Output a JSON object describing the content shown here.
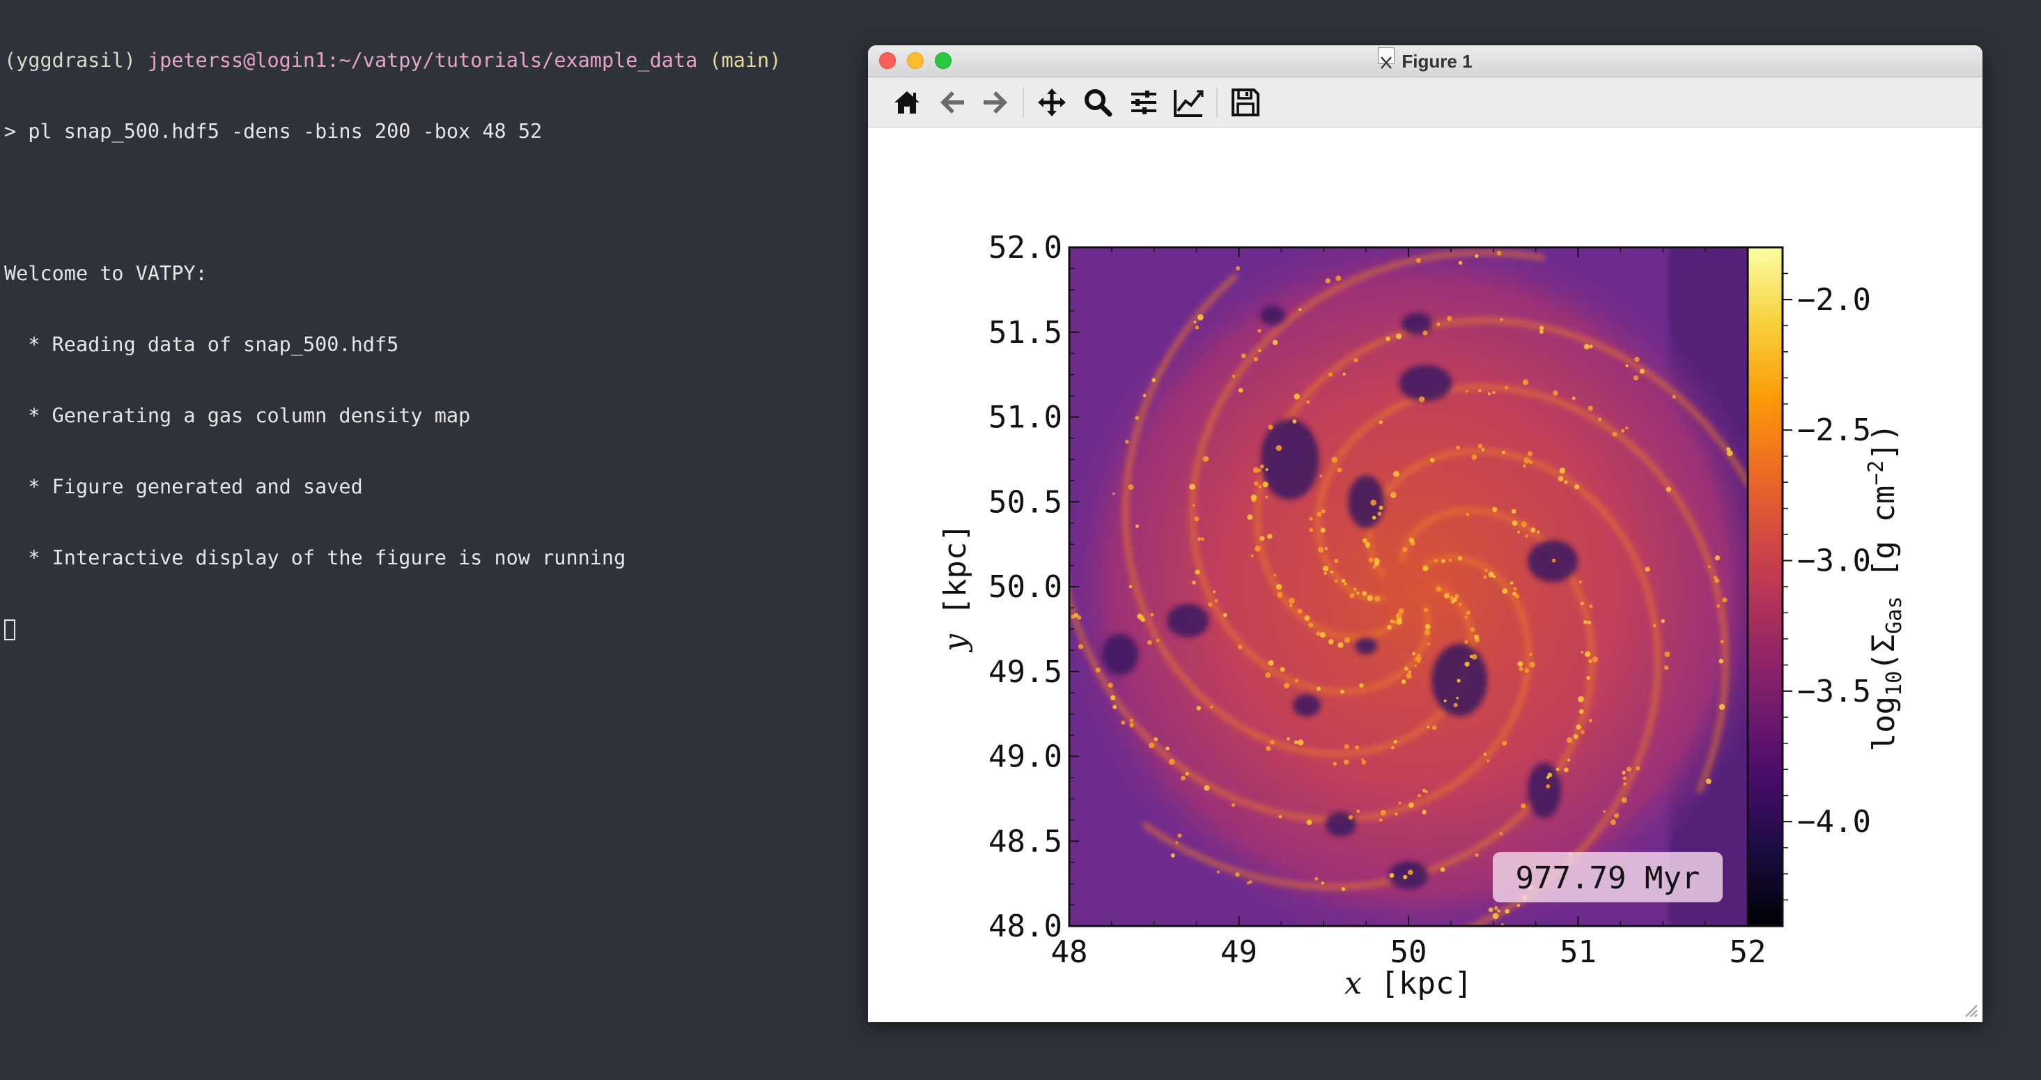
{
  "terminal": {
    "prompt": {
      "env": "(yggdrasil)",
      "user_host": "jpeterss@login1",
      "path": ":~/vatpy/tutorials/example_data",
      "branch": "(main)"
    },
    "command": "> pl snap_500.hdf5 -dens -bins 200 -box 48 52",
    "output": [
      "Welcome to VATPY:",
      "  * Reading data of snap_500.hdf5",
      "  * Generating a gas column density map",
      "  * Figure generated and saved",
      "  * Interactive display of the figure is now running"
    ]
  },
  "window": {
    "title": "Figure 1",
    "toolbar": [
      {
        "name": "home-icon",
        "tooltip": "Home"
      },
      {
        "name": "back-icon",
        "tooltip": "Back"
      },
      {
        "name": "forward-icon",
        "tooltip": "Forward"
      },
      {
        "name": "pan-icon",
        "tooltip": "Pan"
      },
      {
        "name": "zoom-icon",
        "tooltip": "Zoom"
      },
      {
        "name": "subplots-icon",
        "tooltip": "Configure subplots"
      },
      {
        "name": "edit-axis-icon",
        "tooltip": "Edit axis"
      },
      {
        "name": "save-icon",
        "tooltip": "Save"
      }
    ]
  },
  "chart_data": {
    "type": "heatmap",
    "title": "",
    "xlabel": "x [kpc]",
    "ylabel": "y [kpc]",
    "xlim": [
      48,
      52
    ],
    "ylim": [
      48,
      52
    ],
    "x_ticks": [
      "48",
      "49",
      "50",
      "51",
      "52"
    ],
    "y_ticks": [
      "48.0",
      "48.5",
      "49.0",
      "49.5",
      "50.0",
      "50.5",
      "51.0",
      "51.5",
      "52.0"
    ],
    "colorbar": {
      "label": "log10 (ΣGas [g cm−2])",
      "range": [
        -4.4,
        -1.8
      ],
      "ticks": [
        "−2.0",
        "−2.5",
        "−3.0",
        "−3.5",
        "−4.0"
      ],
      "tick_values": [
        -2.0,
        -2.5,
        -3.0,
        -3.5,
        -4.0
      ],
      "colormap": "inferno",
      "colors": [
        "#000004",
        "#1b0c41",
        "#4a0c6b",
        "#781c6d",
        "#a52c60",
        "#cf4446",
        "#ed6925",
        "#fb9b06",
        "#f7d13d",
        "#fcffa4"
      ]
    },
    "annotation": "977.79 Myr",
    "background_color": "#6e2b8e"
  }
}
